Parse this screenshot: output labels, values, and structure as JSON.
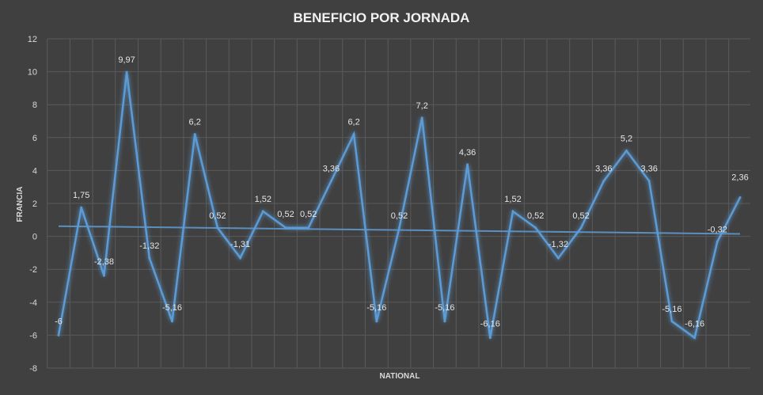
{
  "chart_data": {
    "type": "line",
    "title": "BENEFICIO POR JORNADA",
    "xlabel": "NATIONAL",
    "ylabel": "FRANCIA",
    "ylim": [
      -8,
      12
    ],
    "yticks": [
      "-8",
      "-6",
      "-4",
      "-2",
      "0",
      "2",
      "4",
      "6",
      "8",
      "10",
      "12"
    ],
    "grid": true,
    "series": [
      {
        "values": [
          -6,
          1.75,
          -2.38,
          9.97,
          -1.32,
          -5.16,
          6.2,
          0.52,
          -1.31,
          1.52,
          0.52,
          0.52,
          3.36,
          6.2,
          -5.16,
          0.52,
          7.2,
          -5.16,
          4.36,
          -6.16,
          1.52,
          0.52,
          -1.32,
          0.52,
          3.36,
          5.2,
          3.36,
          -5.16,
          -6.16,
          -0.32,
          2.36
        ],
        "labels": [
          "-6",
          "1,75",
          "-2,38",
          "9,97",
          "-1,32",
          "-5,16",
          "6,2",
          "0,52",
          "-1,31",
          "1,52",
          "0,52",
          "0,52",
          "3,36",
          "6,2",
          "-5,16",
          "0,52",
          "7,2",
          "-5,16",
          "4,36",
          "-6,16",
          "1,52",
          "0,52",
          "-1,32",
          "0,52",
          "3,36",
          "5,2",
          "3,36",
          "-5,16",
          "-6,16",
          "-0,32",
          "2,36"
        ],
        "color": "#5b9bd5"
      }
    ],
    "trendline": {
      "start": 0.62,
      "end": 0.15,
      "color": "#5b8fc0"
    }
  }
}
